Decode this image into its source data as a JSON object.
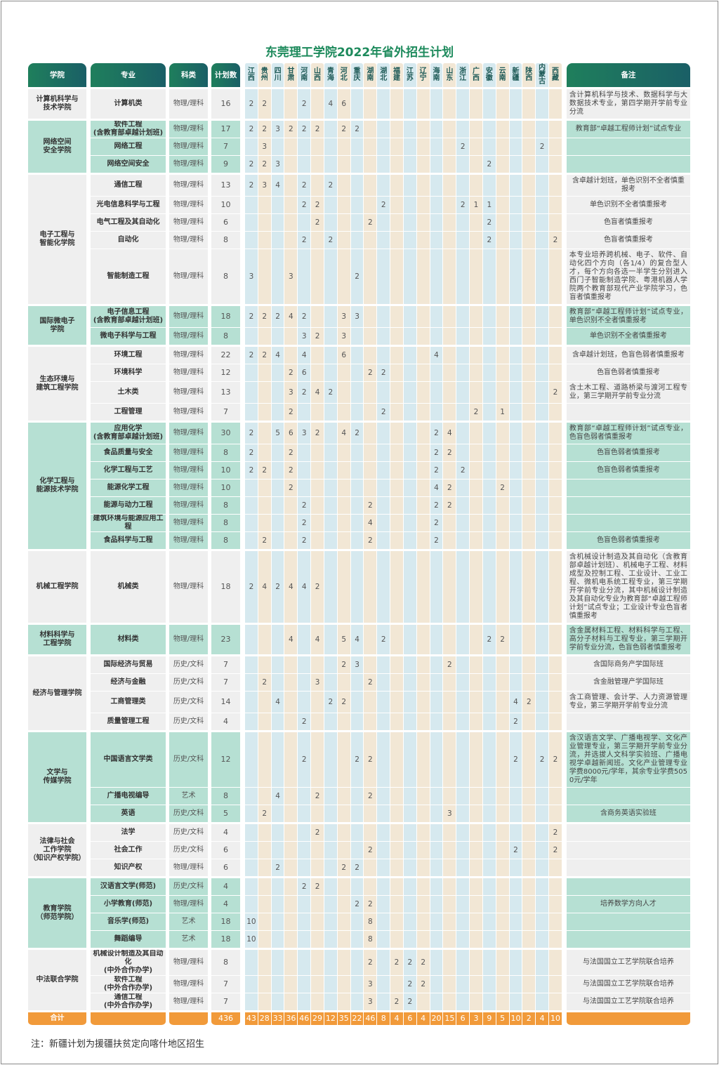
{
  "title": "东莞理工学院2022年省外招生计划",
  "footnote": "注：新疆计划为援疆扶贫定向喀什地区招生",
  "colors": {
    "header": "#1f7f5c",
    "row_gray": "#efefef",
    "row_teal": "#b6e0d3",
    "col_blue": "#d6e9ef",
    "col_beige": "#f2e7d5",
    "total": "#f19a3a",
    "title": "#1d8a5c"
  },
  "header": {
    "college": "学院",
    "major": "专业",
    "type": "科类",
    "plan": "计划数",
    "note": "备注"
  },
  "provinces": [
    "江西",
    "贵州",
    "四川",
    "甘肃",
    "河南",
    "山西",
    "青海",
    "河北",
    "重庆",
    "湖南",
    "湖北",
    "福建",
    "江苏",
    "辽宁",
    "海南",
    "山东",
    "浙江",
    "广西",
    "安徽",
    "云南",
    "新疆",
    "陕西",
    "内蒙古",
    "西藏"
  ],
  "colleges": [
    {
      "name": "计算机科学与\n技术学院",
      "rows": [
        {
          "major": "计算机类",
          "type": "物理/理科",
          "plan": "16",
          "alloc": {
            "江西": "2",
            "贵州": "2",
            "河南": "2",
            "青海": "4",
            "河北": "6"
          },
          "note": "含计算机科学与技术、数据科学与大数据技术专业，第四学期开学前专业分流"
        }
      ]
    },
    {
      "name": "网络空间\n安全学院",
      "rows": [
        {
          "major": "软件工程\n(含教育部卓越计划班)",
          "type": "物理/理科",
          "plan": "17",
          "alloc": {
            "江西": "2",
            "贵州": "2",
            "四川": "3",
            "甘肃": "2",
            "河南": "2",
            "山西": "2",
            "河北": "2",
            "重庆": "2"
          },
          "note": "教育部“卓越工程师计划”试点专业"
        },
        {
          "major": "网络工程",
          "type": "物理/理科",
          "plan": "7",
          "alloc": {
            "贵州": "3",
            "浙江": "2",
            "内蒙古": "2"
          },
          "note": ""
        },
        {
          "major": "网络空间安全",
          "type": "物理/理科",
          "plan": "9",
          "alloc": {
            "江西": "2",
            "贵州": "2",
            "四川": "3",
            "安徽": "2"
          },
          "note": ""
        }
      ]
    },
    {
      "name": "电子工程与\n智能化学院",
      "rows": [
        {
          "major": "通信工程",
          "type": "物理/理科",
          "plan": "13",
          "alloc": {
            "江西": "2",
            "贵州": "3",
            "四川": "4",
            "河南": "2",
            "青海": "2"
          },
          "note": "含卓越计划班，单色识别不全者慎重报考"
        },
        {
          "major": "光电信息科学与工程",
          "type": "物理/理科",
          "plan": "10",
          "alloc": {
            "河南": "2",
            "山西": "2",
            "湖北": "2",
            "浙江": "2",
            "广西": "1",
            "安徽": "1"
          },
          "note": "单色识别不全者慎重报考"
        },
        {
          "major": "电气工程及其自动化",
          "type": "物理/理科",
          "plan": "6",
          "alloc": {
            "山西": "2",
            "湖南": "2",
            "安徽": "2"
          },
          "note": "色盲者慎重报考"
        },
        {
          "major": "自动化",
          "type": "物理/理科",
          "plan": "8",
          "alloc": {
            "河南": "2",
            "青海": "2",
            "安徽": "2",
            "西藏": "2"
          },
          "note": "色盲者慎重报考"
        },
        {
          "major": "智能制造工程",
          "type": "物理/理科",
          "plan": "8",
          "alloc": {
            "江西": "3",
            "甘肃": "3",
            "重庆": "2"
          },
          "note": "本专业培养跨机械、电子、软件、自动化四个方向（各1/4）的复合型人才，每个方向各选一半学生分别进入西门子智能制造学院、粤港机器人学院两个教育部现代产业学院学习，色盲者慎重报考"
        }
      ]
    },
    {
      "name": "国际微电子\n学院",
      "rows": [
        {
          "major": "电子信息工程\n(含教育部卓越计划班)",
          "type": "物理/理科",
          "plan": "18",
          "alloc": {
            "江西": "2",
            "贵州": "2",
            "四川": "2",
            "甘肃": "4",
            "河南": "2",
            "河北": "3",
            "重庆": "3"
          },
          "note": "教育部“卓越工程师计划”试点专业，单色识别不全者慎重报考"
        },
        {
          "major": "微电子科学与工程",
          "type": "物理/理科",
          "plan": "8",
          "alloc": {
            "河南": "3",
            "山西": "2",
            "河北": "3"
          },
          "note": "单色识别不全者慎重报考"
        }
      ]
    },
    {
      "name": "生态环境与\n建筑工程学院",
      "rows": [
        {
          "major": "环境工程",
          "type": "物理/理科",
          "plan": "22",
          "alloc": {
            "江西": "2",
            "贵州": "2",
            "四川": "4",
            "河南": "4",
            "河北": "6",
            "海南": "4"
          },
          "note": "含卓越计划班，色盲色弱者慎重报考"
        },
        {
          "major": "环境科学",
          "type": "物理/理科",
          "plan": "12",
          "alloc": {
            "甘肃": "2",
            "河南": "6",
            "湖南": "2",
            "湖北": "2"
          },
          "note": "色盲色弱者慎重报考"
        },
        {
          "major": "土木类",
          "type": "物理/理科",
          "plan": "13",
          "alloc": {
            "甘肃": "3",
            "河南": "2",
            "山西": "4",
            "青海": "2",
            "西藏": "2"
          },
          "note": "含土木工程、道路桥梁与渡河工程专业，第三学期开学前专业分流"
        },
        {
          "major": "工程管理",
          "type": "物理/理科",
          "plan": "7",
          "alloc": {
            "甘肃": "2",
            "湖北": "2",
            "广西": "2",
            "云南": "1"
          },
          "note": ""
        }
      ]
    },
    {
      "name": "化学工程与\n能源技术学院",
      "rows": [
        {
          "major": "应用化学\n(含教育部卓越计划班)",
          "type": "物理/理科",
          "plan": "30",
          "alloc": {
            "江西": "2",
            "四川": "5",
            "甘肃": "6",
            "河南": "3",
            "山西": "2",
            "河北": "4",
            "重庆": "2",
            "海南": "2",
            "山东": "4"
          },
          "note": "教育部“卓越工程师计划”试点专业，色盲色弱者慎重报考"
        },
        {
          "major": "食品质量与安全",
          "type": "物理/理科",
          "plan": "8",
          "alloc": {
            "江西": "2",
            "甘肃": "2",
            "海南": "2",
            "山东": "2"
          },
          "note": "色盲色弱者慎重报考"
        },
        {
          "major": "化学工程与工艺",
          "type": "物理/理科",
          "plan": "10",
          "alloc": {
            "江西": "2",
            "贵州": "2",
            "甘肃": "2",
            "海南": "2",
            "浙江": "2"
          },
          "note": "色盲色弱者慎重报考"
        },
        {
          "major": "能源化学工程",
          "type": "物理/理科",
          "plan": "10",
          "alloc": {
            "甘肃": "2",
            "海南": "4",
            "山东": "2",
            "云南": "2"
          },
          "note": ""
        },
        {
          "major": "能源与动力工程",
          "type": "物理/理科",
          "plan": "8",
          "alloc": {
            "河南": "2",
            "湖南": "2",
            "海南": "2",
            "山东": "2"
          },
          "note": ""
        },
        {
          "major": "建筑环境与能源应用工程",
          "type": "物理/理科",
          "plan": "8",
          "alloc": {
            "河南": "2",
            "湖南": "4",
            "海南": "2"
          },
          "note": ""
        },
        {
          "major": "食品科学与工程",
          "type": "物理/理科",
          "plan": "8",
          "alloc": {
            "贵州": "2",
            "河南": "2",
            "湖南": "2",
            "海南": "2"
          },
          "note": "色盲色弱者慎重报考"
        }
      ]
    },
    {
      "name": "机械工程学院",
      "rows": [
        {
          "major": "机械类",
          "type": "物理/理科",
          "plan": "18",
          "alloc": {
            "江西": "2",
            "贵州": "4",
            "四川": "2",
            "甘肃": "4",
            "河南": "4",
            "山西": "2"
          },
          "note": "含机械设计制造及其自动化（含教育部卓越计划班）、机械电子工程、材料成型及控制工程、工业设计、工业工程、微机电系统工程专业，第三学期开学前专业分流，其中机械设计制造及其自动化专业为教育部“卓越工程师计划”试点专业；工业设计专业色盲者慎重报考"
        }
      ]
    },
    {
      "name": "材料科学与\n工程学院",
      "rows": [
        {
          "major": "材料类",
          "type": "物理/理科",
          "plan": "23",
          "alloc": {
            "甘肃": "4",
            "山西": "4",
            "河北": "5",
            "重庆": "4",
            "湖北": "2",
            "安徽": "2",
            "云南": "2"
          },
          "note": "含金属材料工程、材料科学与工程、高分子材料与工程专业，第三学期开学前专业分流，色盲色弱者慎重报考"
        }
      ]
    },
    {
      "name": "经济与管理学院",
      "rows": [
        {
          "major": "国际经济与贸易",
          "type": "历史/文科",
          "plan": "7",
          "alloc": {
            "河北": "2",
            "重庆": "3",
            "山东": "2"
          },
          "note": "含国际商务产学国际班"
        },
        {
          "major": "经济与金融",
          "type": "历史/文科",
          "plan": "7",
          "alloc": {
            "贵州": "2",
            "山西": "3",
            "湖南": "2"
          },
          "note": "含金融管理产学国际班"
        },
        {
          "major": "工商管理类",
          "type": "历史/文科",
          "plan": "14",
          "alloc": {
            "四川": "4",
            "青海": "2",
            "河北": "2",
            "新疆": "4",
            "陕西": "2"
          },
          "note": "含工商管理、会计学、人力资源管理专业，第三学期开学前专业分流"
        },
        {
          "major": "质量管理工程",
          "type": "历史/文科",
          "plan": "4",
          "alloc": {
            "河南": "2",
            "新疆": "2"
          },
          "note": ""
        }
      ]
    },
    {
      "name": "文学与\n传媒学院",
      "rows": [
        {
          "major": "中国语言文学类",
          "type": "历史/文科",
          "plan": "12",
          "alloc": {
            "河南": "2",
            "重庆": "2",
            "湖南": "2",
            "新疆": "2",
            "内蒙古": "2",
            "西藏": "2"
          },
          "note": "含汉语言文学、广播电视学、文化产业管理专业，第三学期开学前专业分流，并选拔人文科学实验班、广播电视学卓越新闻班。文化产业管理专业学费8000元/学年，其余专业学费5050元/学年"
        },
        {
          "major": "广播电视编导",
          "type": "艺术",
          "plan": "8",
          "alloc": {
            "四川": "4",
            "山西": "2",
            "湖南": "2"
          },
          "note": ""
        },
        {
          "major": "英语",
          "type": "历史/文科",
          "plan": "5",
          "alloc": {
            "贵州": "2",
            "山东": "3"
          },
          "note": "含商务英语实验班"
        }
      ]
    },
    {
      "name": "法律与社会\n工作学院\n（知识产权学院）",
      "rows": [
        {
          "major": "法学",
          "type": "历史/文科",
          "plan": "4",
          "alloc": {
            "山西": "2",
            "西藏": "2"
          },
          "note": ""
        },
        {
          "major": "社会工作",
          "type": "历史/文科",
          "plan": "6",
          "alloc": {
            "湖南": "2",
            "新疆": "2",
            "西藏": "2"
          },
          "note": ""
        },
        {
          "major": "知识产权",
          "type": "物理/理科",
          "plan": "6",
          "alloc": {
            "四川": "2",
            "河北": "2",
            "重庆": "2"
          },
          "note": ""
        }
      ]
    },
    {
      "name": "教育学院\n（师范学院）",
      "rows": [
        {
          "major": "汉语言文学(师范)",
          "type": "历史/文科",
          "plan": "4",
          "alloc": {
            "河南": "2",
            "山西": "2"
          },
          "note": ""
        },
        {
          "major": "小学教育(师范)",
          "type": "物理/理科",
          "plan": "4",
          "alloc": {
            "重庆": "2",
            "湖南": "2"
          },
          "note": "培养数学方向人才"
        },
        {
          "major": "音乐学(师范)",
          "type": "艺术",
          "plan": "18",
          "alloc": {
            "江西": "10",
            "湖南": "8"
          },
          "note": ""
        },
        {
          "major": "舞蹈编导",
          "type": "艺术",
          "plan": "18",
          "alloc": {
            "江西": "10",
            "湖南": "8"
          },
          "note": ""
        }
      ]
    },
    {
      "name": "中法联合学院",
      "rows": [
        {
          "major": "机械设计制造及其自动化\n(中外合作办学)",
          "type": "物理/理科",
          "plan": "8",
          "alloc": {
            "湖南": "2",
            "福建": "2",
            "江苏": "2",
            "辽宁": "2"
          },
          "note": "与法国国立工艺学院联合培养"
        },
        {
          "major": "软件工程\n(中外合作办学)",
          "type": "物理/理科",
          "plan": "7",
          "alloc": {
            "湖南": "3",
            "江苏": "2",
            "辽宁": "2"
          },
          "note": "与法国国立工艺学院联合培养"
        },
        {
          "major": "通信工程\n(中外合作办学)",
          "type": "物理/理科",
          "plan": "7",
          "alloc": {
            "湖南": "3",
            "福建": "2",
            "江苏": "2"
          },
          "note": "与法国国立工艺学院联合培养"
        }
      ]
    }
  ],
  "total": {
    "label": "合计",
    "plan": "436",
    "alloc": {
      "江西": "43",
      "贵州": "28",
      "四川": "33",
      "甘肃": "36",
      "河南": "46",
      "山西": "29",
      "青海": "12",
      "河北": "35",
      "重庆": "22",
      "湖南": "46",
      "湖北": "8",
      "福建": "4",
      "江苏": "6",
      "辽宁": "4",
      "海南": "20",
      "山东": "15",
      "浙江": "6",
      "广西": "3",
      "安徽": "9",
      "云南": "5",
      "新疆": "10",
      "陕西": "2",
      "内蒙古": "4",
      "西藏": "10"
    }
  }
}
